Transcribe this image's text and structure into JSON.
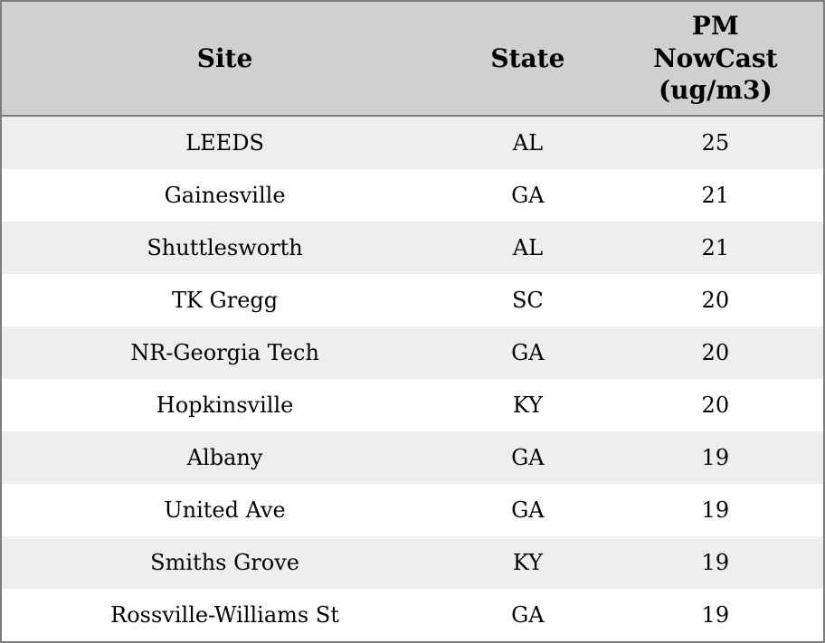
{
  "table": {
    "name": "PM NowCast readings by site",
    "columns": {
      "site": "Site",
      "state": "State",
      "value": "PM\nNowCast\n(ug/m3)"
    },
    "rows": [
      {
        "site": "LEEDS",
        "state": "AL",
        "value": "25"
      },
      {
        "site": "Gainesville",
        "state": "GA",
        "value": "21"
      },
      {
        "site": "Shuttlesworth",
        "state": "AL",
        "value": "21"
      },
      {
        "site": "TK Gregg",
        "state": "SC",
        "value": "20"
      },
      {
        "site": "NR-Georgia Tech",
        "state": "GA",
        "value": "20"
      },
      {
        "site": "Hopkinsville",
        "state": "KY",
        "value": "20"
      },
      {
        "site": "Albany",
        "state": "GA",
        "value": "19"
      },
      {
        "site": "United Ave",
        "state": "GA",
        "value": "19"
      },
      {
        "site": "Smiths Grove",
        "state": "KY",
        "value": "19"
      },
      {
        "site": "Rossville-Williams St",
        "state": "GA",
        "value": "19"
      }
    ],
    "colors": {
      "header_bg": "#d0d0d0",
      "row_stripe": "#eeeeee",
      "row_plain": "#ffffff",
      "border": "#7d7d7d",
      "text": "#000000"
    }
  }
}
